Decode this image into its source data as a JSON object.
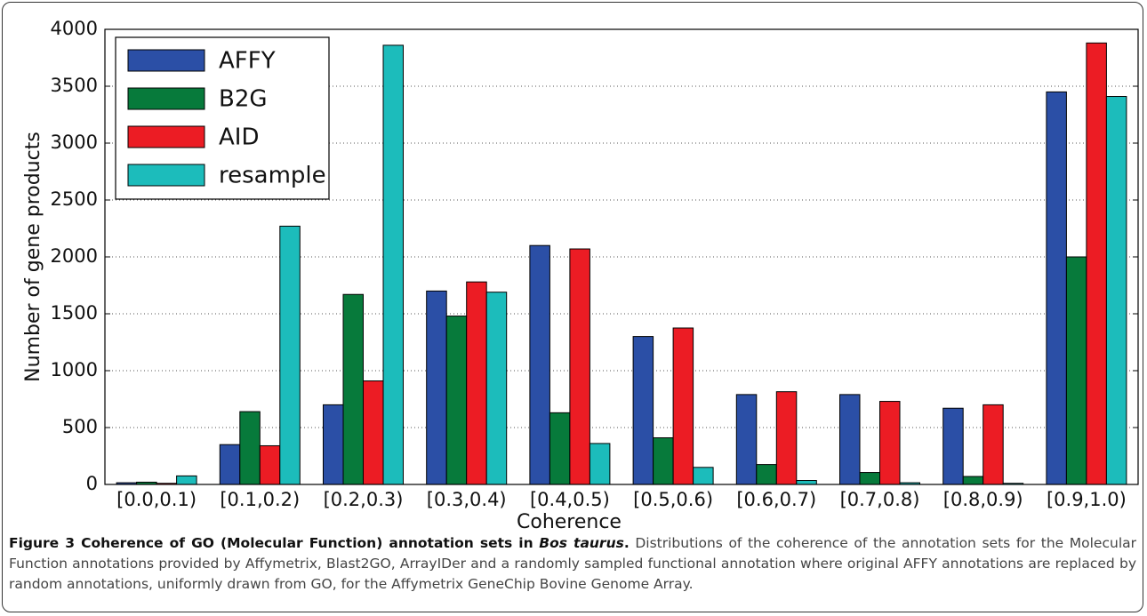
{
  "chart_data": {
    "type": "bar",
    "xlabel": "Coherence",
    "ylabel": "Number of gene products",
    "categories": [
      "[0.0,0.1)",
      "[0.1,0.2)",
      "[0.2,0.3)",
      "[0.3,0.4)",
      "[0.4,0.5)",
      "[0.5,0.6)",
      "[0.6,0.7)",
      "[0.7,0.8)",
      "[0.8,0.9)",
      "[0.9,1.0)"
    ],
    "series": [
      {
        "name": "AFFY",
        "color": "#2b4fa6",
        "values": [
          15,
          350,
          700,
          1700,
          2100,
          1300,
          790,
          790,
          670,
          3450
        ]
      },
      {
        "name": "B2G",
        "color": "#077a3b",
        "values": [
          20,
          640,
          1670,
          1480,
          630,
          410,
          175,
          105,
          70,
          2000
        ]
      },
      {
        "name": "AID",
        "color": "#ec1c24",
        "values": [
          10,
          340,
          910,
          1780,
          2070,
          1375,
          815,
          730,
          700,
          3880
        ]
      },
      {
        "name": "resample",
        "color": "#1cbcbb",
        "values": [
          75,
          2270,
          3860,
          1690,
          360,
          150,
          35,
          15,
          10,
          3410
        ]
      }
    ],
    "ylim": [
      0,
      4000
    ],
    "yticks": [
      0,
      500,
      1000,
      1500,
      2000,
      2500,
      3000,
      3500,
      4000
    ],
    "grid": true,
    "legend": "upper left"
  },
  "caption": {
    "title": "Figure 3 Coherence of GO (Molecular Function) annotation sets in",
    "species": "Bos taurus",
    "title_end": ".",
    "text": "Distributions of the coherence of the annotation sets for the Molecular Function annotations provided by Affymetrix, Blast2GO, ArrayIDer and a randomly sampled functional annotation where original AFFY annotations are replaced by random annotations, uniformly drawn from GO, for the Affymetrix GeneChip Bovine Genome Array."
  }
}
